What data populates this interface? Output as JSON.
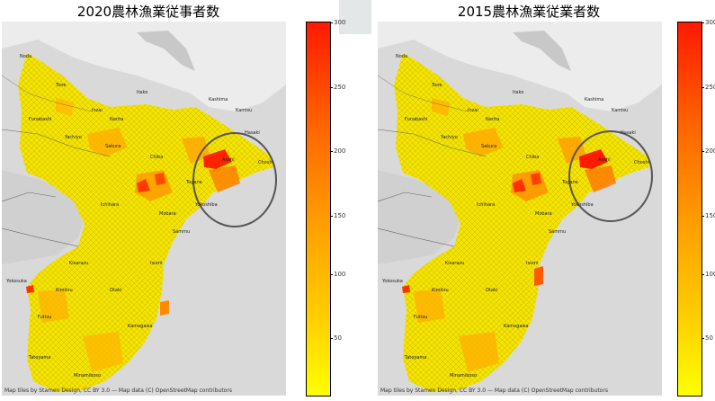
{
  "panels": [
    {
      "title": "2020農林漁業従事者数",
      "attribution": "Map tiles by Stamen Design, CC BY 3.0 — Map data (C) OpenStreetMap contributors",
      "colorbar": {
        "min": 0,
        "max": 300,
        "ticks": [
          "300",
          "250",
          "200",
          "150",
          "100",
          "50"
        ]
      }
    },
    {
      "title": "2015農林漁業従業者数",
      "attribution": "Map tiles by Stamen Design, CC BY 3.0 — Map data (C) OpenStreetMap contributors",
      "colorbar": {
        "min": 0,
        "max": 300,
        "ticks": [
          "300",
          "250",
          "200",
          "150",
          "100",
          "50"
        ]
      }
    }
  ],
  "place_labels": [
    "Noda",
    "Tone",
    "Inzai",
    "Narita",
    "Sakura",
    "Chiba",
    "Ichihara",
    "Mobara",
    "Togane",
    "Asahi",
    "Choshi",
    "Kashima",
    "Kamisu",
    "Hasaki",
    "Itako",
    "Yachiyo",
    "Funabashi",
    "Kisarazu",
    "Kimitsu",
    "Futtsu",
    "Kamogawa",
    "Tateyama",
    "Minamiboso",
    "Otaki",
    "Isumi",
    "Sammu",
    "Yokoshiba",
    "Yokosuka"
  ],
  "colors": {
    "background": "#ffffff",
    "map_base": "#d7d7d7",
    "low": "#ffff00",
    "mid": "#ffa000",
    "high": "#ff1a00",
    "highlight_circle": "#555555"
  }
}
